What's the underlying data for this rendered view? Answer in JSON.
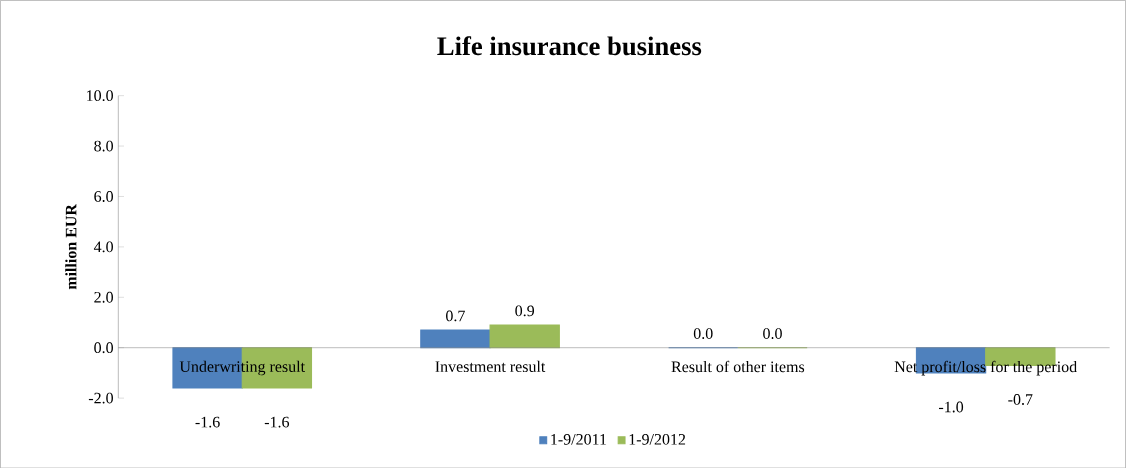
{
  "chart_data": {
    "type": "bar",
    "title": "Life insurance business",
    "ylabel": "million EUR",
    "categories": [
      "Underwriting result",
      "Investment result",
      "Result of other items",
      "Net profit/loss for the period"
    ],
    "series": [
      {
        "name": "1-9/2011",
        "color": "#4f81bd",
        "values": [
          -1.6,
          0.7,
          0.0,
          -1.0
        ],
        "value_labels": [
          "-1.6",
          "0.7",
          "0.0",
          "-1.0"
        ]
      },
      {
        "name": "1-9/2012",
        "color": "#9bbb59",
        "values": [
          -1.6,
          0.9,
          0.0,
          -0.7
        ],
        "value_labels": [
          "-1.6",
          "0.9",
          "0.0",
          "-0.7"
        ]
      }
    ],
    "ylim": [
      -2,
      10
    ],
    "yticks": [
      {
        "value": -2,
        "label": "-2.0"
      },
      {
        "value": 0,
        "label": "0.0"
      },
      {
        "value": 2,
        "label": "2.0"
      },
      {
        "value": 4,
        "label": "4.0"
      },
      {
        "value": 6,
        "label": "6.0"
      },
      {
        "value": 8,
        "label": "8.0"
      },
      {
        "value": 10,
        "label": "10.0"
      }
    ],
    "legend": "bottom",
    "grid": false
  }
}
